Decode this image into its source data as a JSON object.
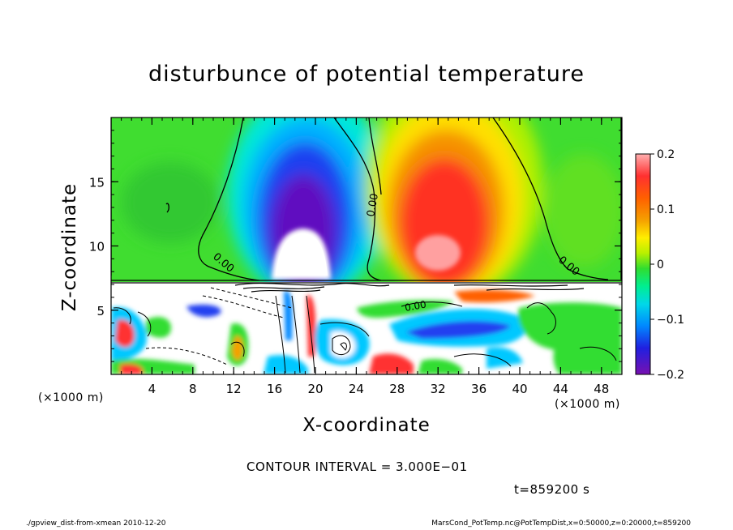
{
  "chart_data": {
    "type": "heatmap",
    "title": "disturbunce of potential temperature",
    "xlabel": "X-coordinate",
    "ylabel": "Z-coordinate",
    "x_unit": "(×1000 m)",
    "x_range": [
      0,
      50
    ],
    "y_range": [
      0,
      20
    ],
    "x_ticks": [
      4,
      8,
      12,
      16,
      20,
      24,
      28,
      32,
      36,
      40,
      44,
      48
    ],
    "y_ticks": [
      5,
      10,
      15
    ],
    "colorbar": {
      "range": [
        -0.2,
        0.2
      ],
      "ticks": [
        {
          "value": 0.2,
          "label": "0.2"
        },
        {
          "value": 0.1,
          "label": "0.1"
        },
        {
          "value": 0,
          "label": "0"
        },
        {
          "value": -0.1,
          "label": "−0.1"
        },
        {
          "value": -0.2,
          "label": "−0.2"
        }
      ],
      "colors": [
        "#ffb0b0",
        "#ff3030",
        "#f5a000",
        "#ffee00",
        "#b8f000",
        "#30dd30",
        "#00ee90",
        "#00d8e8",
        "#0088ff",
        "#2020e0",
        "#7810b0"
      ]
    },
    "contour_labels": [
      "0.00",
      "0.00",
      "0.00",
      "0.00"
    ],
    "features": [
      {
        "name": "cold anomaly",
        "x_center": 19.5,
        "z_range": [
          8,
          20
        ],
        "min_value": -0.2
      },
      {
        "name": "warm anomaly",
        "x_center": 33,
        "z_range": [
          7.5,
          20
        ],
        "max_value": 0.2
      },
      {
        "name": "stratified lower layer",
        "z_range": [
          0,
          7.5
        ]
      }
    ],
    "grid": false,
    "legend": "colorbar right"
  },
  "contour_interval": "CONTOUR INTERVAL = 3.000E−01",
  "time_label": "t=859200 s",
  "footer_left": "./gpview_dist-from-xmean  2010-12-20",
  "footer_right": "MarsCond_PotTemp.nc@PotTempDist,x=0:50000,z=0:20000,t=859200"
}
